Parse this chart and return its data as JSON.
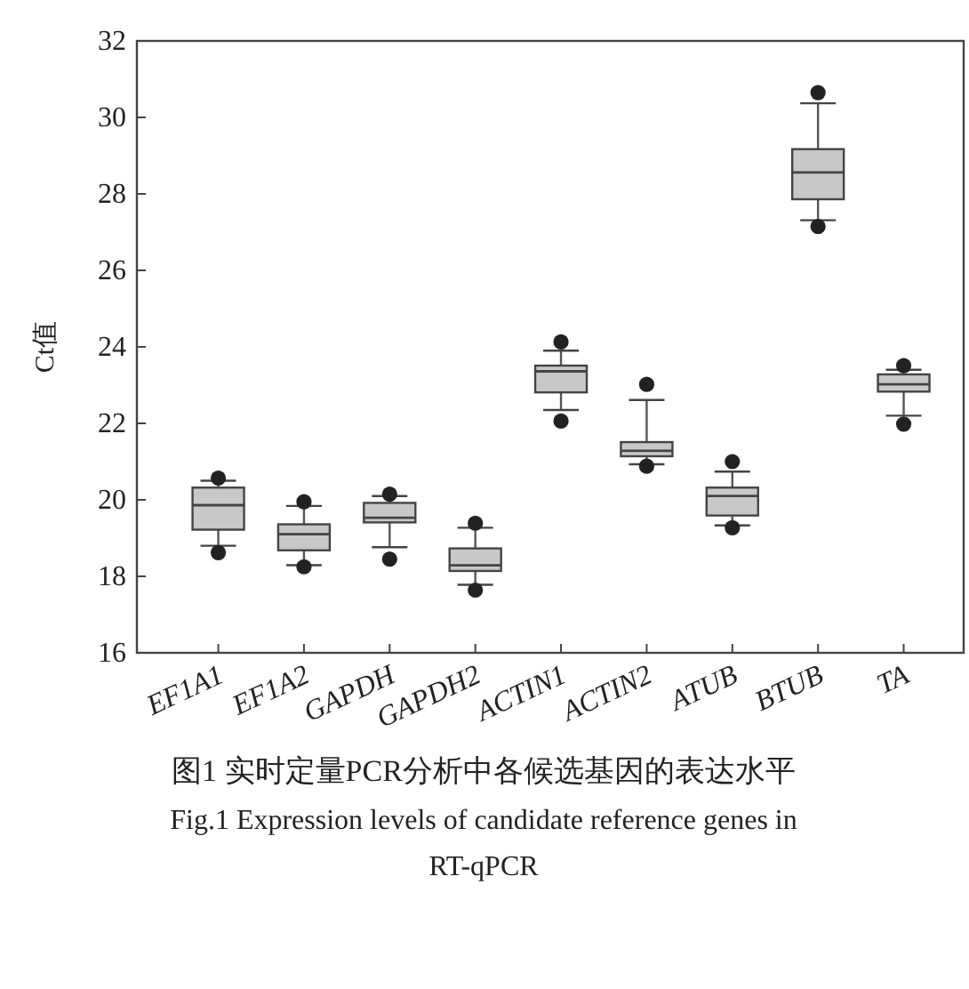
{
  "chart_data": {
    "type": "box",
    "ylabel": "Ct值",
    "categories": [
      "EF1A1",
      "EF1A2",
      "GAPDH",
      "GAPDH2",
      "ACTIN1",
      "ACTIN2",
      "ATUB",
      "BTUB",
      "TA"
    ],
    "ylim": [
      16,
      32
    ],
    "yticks": [
      16,
      18,
      20,
      22,
      24,
      26,
      28,
      30,
      32
    ],
    "series": [
      {
        "color": "#c8c8c8",
        "boxes": [
          {
            "low": 18.8,
            "q1": 19.22,
            "median": 19.86,
            "q3": 20.32,
            "high": 20.5,
            "outliers": [
              20.57,
              18.62
            ]
          },
          {
            "low": 18.29,
            "q1": 18.68,
            "median": 19.1,
            "q3": 19.36,
            "high": 19.84,
            "outliers": [
              19.95,
              18.25
            ]
          },
          {
            "low": 18.76,
            "q1": 19.41,
            "median": 19.53,
            "q3": 19.92,
            "high": 20.1,
            "outliers": [
              20.15,
              18.45
            ]
          },
          {
            "low": 17.78,
            "q1": 18.14,
            "median": 18.29,
            "q3": 18.73,
            "high": 19.27,
            "outliers": [
              19.39,
              17.64
            ]
          },
          {
            "low": 22.35,
            "q1": 22.81,
            "median": 23.36,
            "q3": 23.51,
            "high": 23.9,
            "outliers": [
              24.13,
              22.06
            ]
          },
          {
            "low": 20.93,
            "q1": 21.14,
            "median": 21.28,
            "q3": 21.51,
            "high": 22.61,
            "outliers": [
              23.02,
              20.88
            ]
          },
          {
            "low": 19.33,
            "q1": 19.59,
            "median": 20.1,
            "q3": 20.32,
            "high": 20.74,
            "outliers": [
              21.0,
              19.27
            ]
          },
          {
            "low": 27.31,
            "q1": 27.86,
            "median": 28.56,
            "q3": 29.17,
            "high": 30.37,
            "outliers": [
              30.65,
              27.15
            ]
          },
          {
            "low": 22.2,
            "q1": 22.83,
            "median": 23.02,
            "q3": 23.28,
            "high": 23.4,
            "outliers": [
              23.51,
              21.98
            ]
          }
        ]
      }
    ],
    "annotations": [
      "图1  实时定量PCR分析中各候选基因的表达水平",
      "Fig.1  Expression levels of candidate reference genes in",
      "RT-qPCR"
    ]
  }
}
